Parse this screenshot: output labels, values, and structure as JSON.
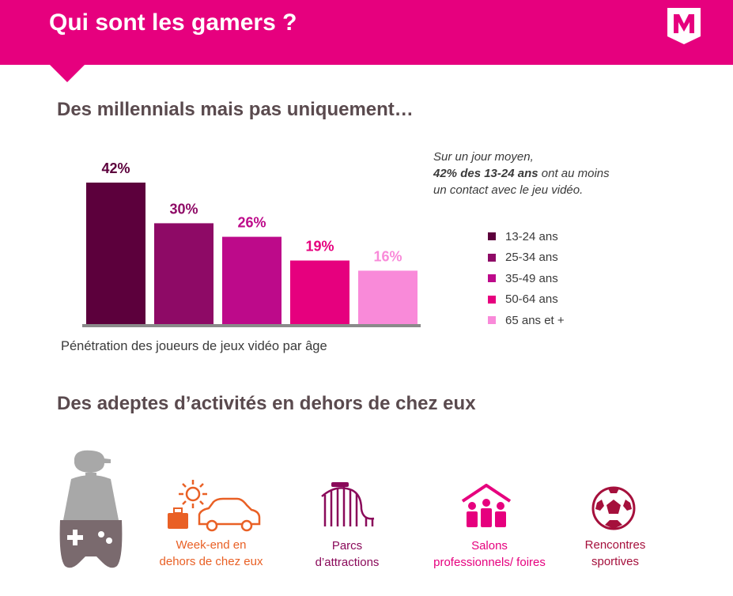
{
  "header": {
    "title": "Qui sont les gamers ?"
  },
  "sections": {
    "millennials_title": "Des millennials mais pas uniquement…",
    "activities_title": "Des adeptes d’activités en dehors de chez eux"
  },
  "note": {
    "line1": "Sur un jour moyen,",
    "highlight": "42% des 13-24 ans",
    "line2_rest": " ont au moins",
    "line3": "un contact avec le jeu vidéo."
  },
  "chart_data": {
    "type": "bar",
    "title": "Pénétration des joueurs de jeux vidéo par âge",
    "categories": [
      "13-24 ans",
      "25-34 ans",
      "35-49 ans",
      "50-64 ans",
      "65 ans et +"
    ],
    "values": [
      42,
      30,
      26,
      19,
      16
    ],
    "labels": [
      "42%",
      "30%",
      "26%",
      "19%",
      "16%"
    ],
    "colors": [
      "#5c003c",
      "#8e0a66",
      "#bd0a8a",
      "#e6007e",
      "#f98ad9"
    ],
    "ylim": [
      0,
      42
    ],
    "legend_position": "right"
  },
  "activities": [
    {
      "line1": "Week-end en",
      "line2": "dehors de chez eux",
      "color": "#e96025",
      "icon": "sun-car-luggage-icon"
    },
    {
      "line1": "Parcs",
      "line2": "d’attractions",
      "color": "#8a0a5a",
      "icon": "roller-coaster-icon"
    },
    {
      "line1": "Salons",
      "line2": "professionnels/ foires",
      "color": "#e6007e",
      "icon": "exhibition-people-icon"
    },
    {
      "line1": "Rencontres",
      "line2": "sportives",
      "color": "#a5103c",
      "icon": "soccer-ball-icon"
    }
  ],
  "colors": {
    "brand": "#e6007e",
    "heading": "#5a4a4e",
    "baseline": "#8a8a8a",
    "gamer_icon": "#a8a8a8"
  }
}
